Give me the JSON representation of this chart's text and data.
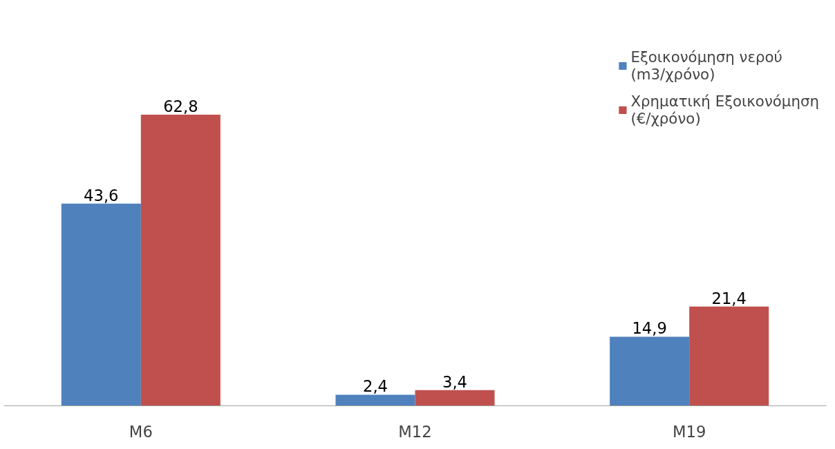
{
  "chart_data": {
    "type": "bar",
    "categories": [
      "M6",
      "M12",
      "M19"
    ],
    "series": [
      {
        "name": "Εξοικονόμηση νερού (m3/χρόνο)",
        "color": "#4f81bd",
        "values": [
          43.6,
          2.4,
          14.9
        ],
        "value_labels": [
          "43,6",
          "2,4",
          "14,9"
        ]
      },
      {
        "name": "Χρηματική Εξοικονόμηση (€/χρόνο)",
        "color": "#c0504d",
        "values": [
          62.8,
          3.4,
          21.4
        ],
        "value_labels": [
          "62,8",
          "3,4",
          "21,4"
        ]
      }
    ],
    "legend": "right",
    "grid": false
  }
}
